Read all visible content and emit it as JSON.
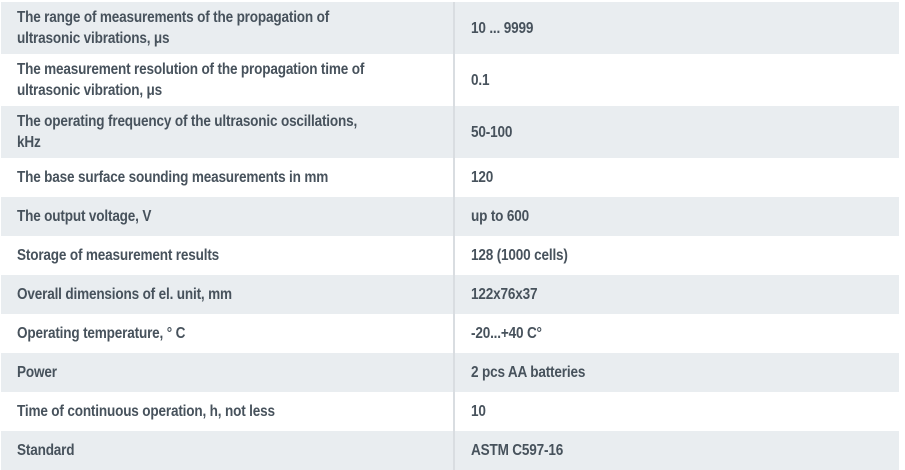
{
  "table": {
    "name": "ultrasonic-tester-specifications",
    "colors": {
      "row_alt_background": "#e9edf0",
      "row_background": "#ffffff",
      "text": "#47525c",
      "column_divider": "#d9dde1"
    },
    "rows": [
      {
        "label": "The range of measurements of the propagation of ultrasonic vibrations, μs",
        "value": "10 ... 9999"
      },
      {
        "label": "The measurement resolution of the propagation time of ultrasonic vibration, μs",
        "value": "0.1"
      },
      {
        "label": "The operating frequency of the ultrasonic oscillations, kHz",
        "value": "50-100"
      },
      {
        "label": "The base surface sounding measurements in mm",
        "value": "120"
      },
      {
        "label": "The output voltage, V",
        "value": "up to 600"
      },
      {
        "label": "Storage of measurement results",
        "value": "128 (1000 cells)"
      },
      {
        "label": "Overall dimensions of el. unit, mm",
        "value": "122x76x37"
      },
      {
        "label": "Operating temperature, ° C",
        "value": "-20...+40 C°"
      },
      {
        "label": "Power",
        "value": "2 pcs AA batteries"
      },
      {
        "label": "Time of continuous operation, h, not less",
        "value": "10"
      },
      {
        "label": "Standard",
        "value": "ASTM C597-16"
      }
    ]
  }
}
